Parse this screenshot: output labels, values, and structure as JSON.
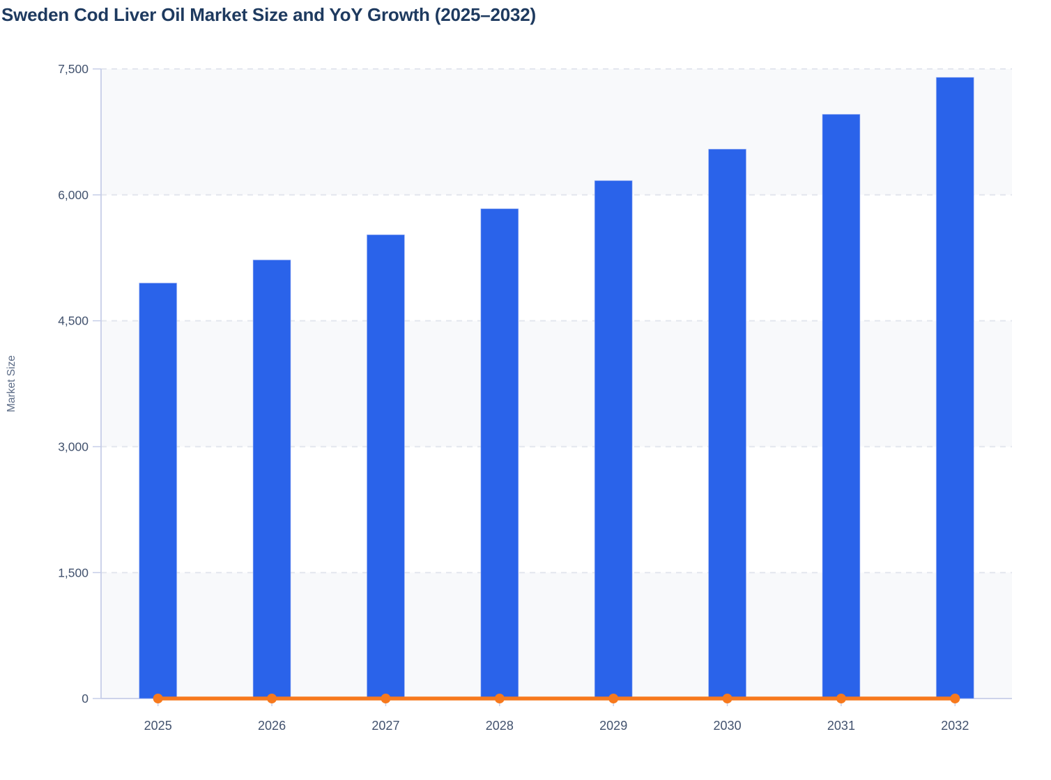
{
  "title": "Sweden Cod Liver Oil Market Size and YoY Growth (2025–2032)",
  "chart_data": {
    "type": "bar",
    "title": "Sweden Cod Liver Oil Market Size and YoY Growth (2025–2032)",
    "categories": [
      "2025",
      "2026",
      "2027",
      "2028",
      "2029",
      "2030",
      "2031",
      "2032"
    ],
    "series": [
      {
        "name": "Market Size",
        "type": "bar",
        "color": "#2a63ea",
        "values": [
          4950,
          5225,
          5525,
          5835,
          6170,
          6545,
          6960,
          7400
        ]
      },
      {
        "name": "YoY Growth",
        "type": "line",
        "color": "#f7791d",
        "values": [
          0,
          0,
          0,
          0,
          0,
          0,
          0,
          0
        ],
        "note": "line with round markers renders flat at ~0 on the shared Market Size axis"
      }
    ],
    "xlabel": "",
    "ylabel": "Market Size",
    "ylim": [
      0,
      7500
    ],
    "yticks": [
      0,
      1500,
      3000,
      4500,
      6000,
      7500
    ],
    "ytick_labels": [
      "0",
      "1,500",
      "3,000",
      "4,500",
      "6,000",
      "7,500"
    ],
    "grid": "dashed horizontal gridlines",
    "legend": "none",
    "plot_background": "alternating horizontal bands",
    "colors": {
      "bar": "#2a63ea",
      "bar_edge": "#b9c7f5",
      "line": "#f7791d",
      "axis": "#c6cde8",
      "gridline": "#e3e6ee",
      "band": "#f8f9fb",
      "tick_label": "#42526e",
      "axis_title": "#5b6b86",
      "title": "#1e3a5f"
    }
  }
}
